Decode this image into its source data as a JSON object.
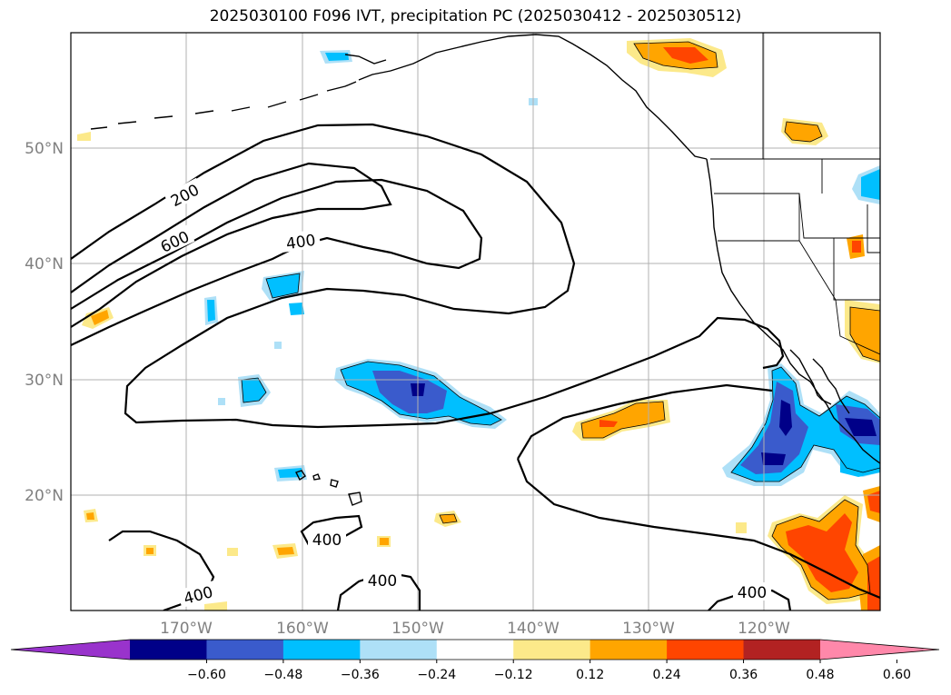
{
  "title": "2025030100 F096 IVT, precipitation PC (2025030412 - 2025030512)",
  "lat_labels": [
    "50°N",
    "40°N",
    "30°N",
    "20°N"
  ],
  "lon_labels": [
    "170°W",
    "160°W",
    "150°W",
    "140°W",
    "130°W",
    "120°W"
  ],
  "contour_labels": [
    "200",
    "600",
    "400",
    "400",
    "400",
    "400",
    "400"
  ],
  "colorbar": {
    "ticks": [
      "−0.60",
      "−0.48",
      "−0.36",
      "−0.24",
      "−0.12",
      "0.12",
      "0.24",
      "0.36",
      "0.48",
      "0.60"
    ],
    "colors": [
      "#9933cc",
      "#000088",
      "#3a5bcc",
      "#00bfff",
      "#aee0f7",
      "#ffffff",
      "#fce98a",
      "#ffa500",
      "#ff4500",
      "#b22222",
      "#ff88aa"
    ]
  },
  "colors": {
    "positive_light": "#fce98a",
    "positive_mid": "#ffa500",
    "positive_high": "#ff4500",
    "negative_light": "#aee0f7",
    "negative_mid": "#00bfff",
    "negative_high": "#3a5bcc",
    "negative_extreme": "#000088"
  }
}
